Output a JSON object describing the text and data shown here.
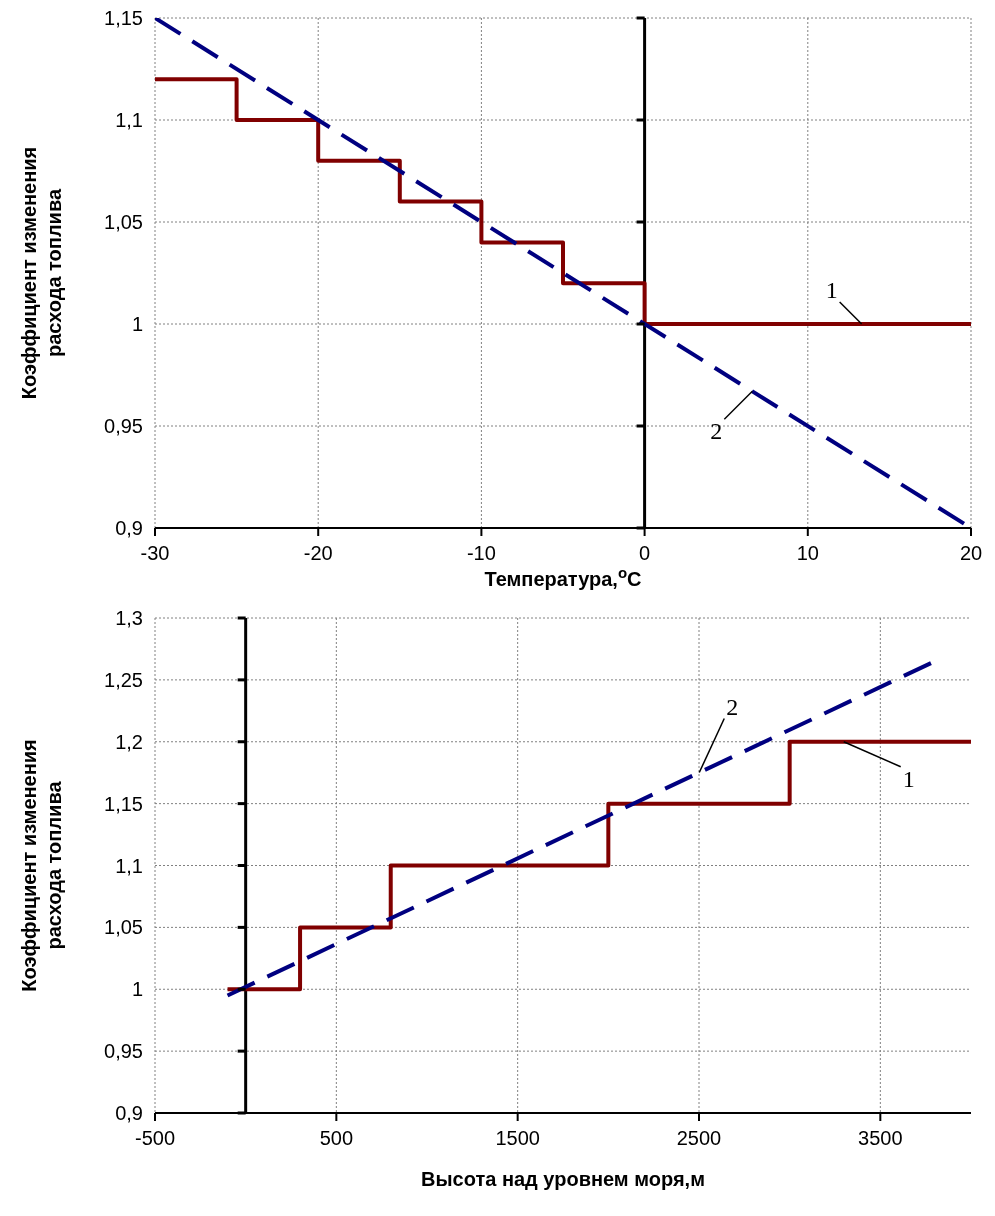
{
  "chart_data": [
    {
      "type": "line",
      "xlabel": "Температура,$^{o}$C",
      "ylabel": "Коэффициент изменения расхода топлива",
      "xlim": [
        -30,
        20
      ],
      "xticks": [
        -30,
        -20,
        -10,
        0,
        10,
        20
      ],
      "ylim": [
        0.9,
        1.15
      ],
      "yticks": [
        {
          "value": 0.9,
          "label": "0,9"
        },
        {
          "value": 0.95,
          "label": "0,95"
        },
        1,
        {
          "value": 1.05,
          "label": "1,05"
        },
        {
          "value": 1.1,
          "label": "1,1"
        },
        {
          "value": 1.15,
          "label": "1,15"
        }
      ],
      "grid": true,
      "series": [
        {
          "name": "1",
          "type": "step",
          "color": "#800000",
          "line_style": "solid",
          "x": [
            -30,
            -25,
            -20,
            -15,
            -10,
            -5,
            0,
            20
          ],
          "values": [
            1.12,
            1.1,
            1.08,
            1.06,
            1.04,
            1.02,
            1.0,
            1.0
          ]
        },
        {
          "name": "2",
          "color": "#000080",
          "line_style": "dashed",
          "x": [
            -30,
            20
          ],
          "values": [
            1.15,
            0.9
          ]
        }
      ]
    },
    {
      "type": "line",
      "xlabel": "Высота над уровнем моря,м",
      "ylabel": "Коэффициент изменения расхода топлива",
      "xlim": [
        -500,
        4000
      ],
      "xticks": [
        -500,
        500,
        1500,
        2500,
        3500
      ],
      "ylim": [
        0.9,
        1.3
      ],
      "yticks": [
        {
          "value": 0.9,
          "label": "0,9"
        },
        {
          "value": 0.95,
          "label": "0,95"
        },
        1,
        {
          "value": 1.05,
          "label": "1,05"
        },
        {
          "value": 1.1,
          "label": "1,1"
        },
        {
          "value": 1.15,
          "label": "1,15"
        },
        {
          "value": 1.2,
          "label": "1,2"
        },
        {
          "value": 1.25,
          "label": "1,25"
        },
        {
          "value": 1.3,
          "label": "1,3"
        }
      ],
      "grid": true,
      "series": [
        {
          "name": "1",
          "type": "step",
          "color": "#800000",
          "line_style": "solid",
          "x": [
            -100,
            300,
            800,
            2000,
            3000,
            4000
          ],
          "values": [
            1.0,
            1.05,
            1.1,
            1.15,
            1.2,
            1.2
          ]
        },
        {
          "name": "2",
          "color": "#000080",
          "line_style": "dashed",
          "x": [
            -100,
            3800
          ],
          "values": [
            0.995,
            1.265
          ]
        }
      ]
    }
  ]
}
